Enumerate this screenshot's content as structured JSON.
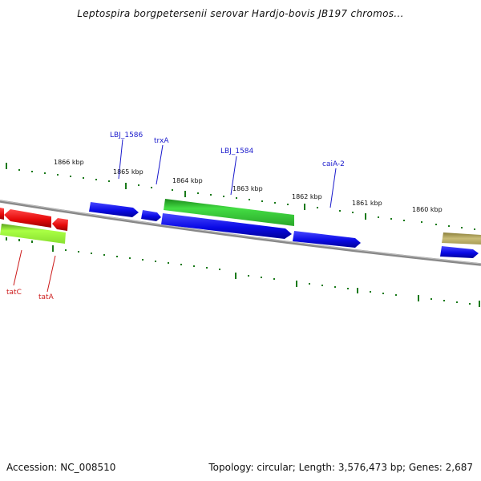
{
  "title": "Leptospira borgpetersenii serovar Hardjo-bovis JB197 chromos...",
  "footer": {
    "accession": "Accession: NC_008510",
    "summary": "Topology: circular; Length: 3,576,473 bp; Genes: 2,687"
  },
  "scale_labels": [
    "1866 kbp",
    "1865 kbp",
    "1864 kbp",
    "1863 kbp",
    "1862 kbp",
    "1861 kbp",
    "1860 kbp"
  ],
  "gene_labels": {
    "lbj_1586": "LBJ_1586",
    "trxa": "trxA",
    "lbj_1584": "LBJ_1584",
    "caia_2": "caiA-2",
    "tatc": "tatC",
    "tata": "tatA"
  },
  "colors": {
    "forward_cds": "#0a0ae6",
    "reverse_cds": "#e60a0a",
    "green_feature": "#33cc33",
    "lime_feature": "#99ff33",
    "olive_feature": "#b5aa5a",
    "backbone": "#888888",
    "tick": "#1a7a1a",
    "label_blue": "#1a1acc",
    "label_red": "#cc1a1a"
  }
}
